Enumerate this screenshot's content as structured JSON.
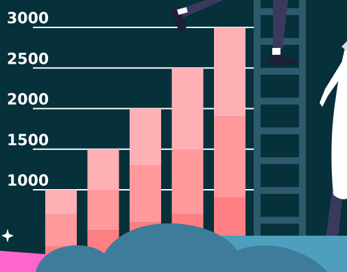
{
  "chart_data": {
    "type": "bar",
    "stacked": true,
    "categories": [
      "",
      "",
      "",
      "",
      ""
    ],
    "totals": [
      1000,
      1500,
      2000,
      2500,
      3000
    ],
    "y_ticks": [
      "1000",
      "1500",
      "2000",
      "2500",
      "3000"
    ],
    "y_tick_values": [
      1000,
      1500,
      2000,
      2500,
      3000
    ],
    "ylim": [
      0,
      3000
    ],
    "grid": true,
    "series": [
      {
        "values": [
          300,
          500,
          600,
          700,
          900
        ]
      },
      {
        "values": [
          400,
          500,
          700,
          800,
          1000
        ]
      },
      {
        "values": [
          300,
          500,
          700,
          1000,
          1100
        ]
      }
    ]
  },
  "colors": {
    "background": "#06303a",
    "gridline": "#ffffff",
    "segment_bottom": "#ff7f82",
    "segment_middle": "#ff999b",
    "segment_top": "#ffb0b5",
    "ladder": "#2e5a6e",
    "cloud": "#3d7c9a",
    "floor": "#4e9fbd",
    "pink_ground": "#ff66cc",
    "figure_coat": "#ffffff",
    "figure_legs": "#3a3a5e"
  },
  "decorations": [
    "ladder",
    "cloud",
    "person-climbing-ladder",
    "figure-in-white-coat",
    "sparkle-icon"
  ]
}
